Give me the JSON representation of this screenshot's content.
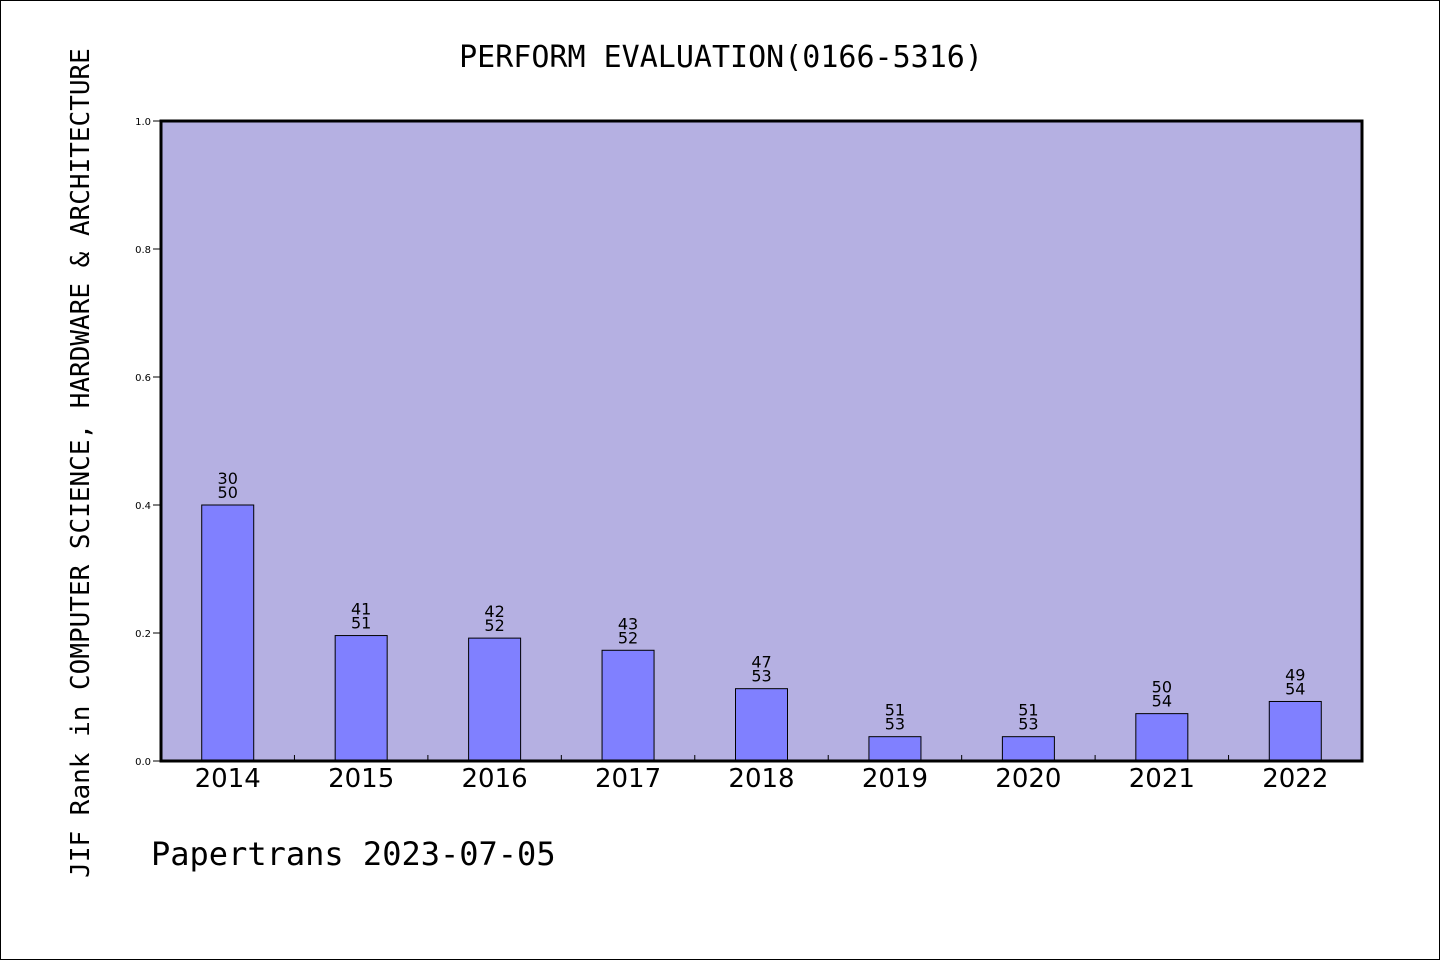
{
  "chart_data": {
    "type": "bar",
    "title": "PERFORM EVALUATION(0166-5316)",
    "ylabel": "JIF Rank in COMPUTER SCIENCE, HARDWARE & ARCHITECTURE",
    "xlabel": "",
    "categories": [
      "2014",
      "2015",
      "2016",
      "2017",
      "2018",
      "2019",
      "2020",
      "2021",
      "2022"
    ],
    "values": [
      0.4,
      0.196,
      0.192,
      0.173,
      0.113,
      0.038,
      0.038,
      0.074,
      0.093
    ],
    "rank": [
      30,
      41,
      42,
      43,
      47,
      51,
      51,
      50,
      49
    ],
    "total": [
      50,
      51,
      52,
      52,
      53,
      53,
      53,
      54,
      54
    ],
    "ylim": [
      0,
      1.0
    ],
    "yticks": [
      "0.0",
      "0.2",
      "0.4",
      "0.6",
      "0.8",
      "1.0"
    ],
    "grid": false,
    "colors": {
      "plot_bg": "#b5b0e2",
      "bar": "#8080ff",
      "axis": "#000000"
    }
  },
  "footer": "Papertrans 2023-07-05"
}
